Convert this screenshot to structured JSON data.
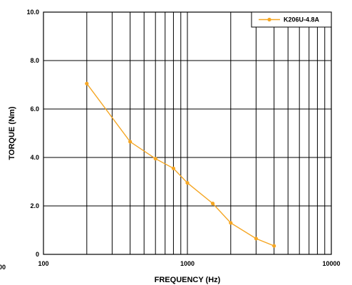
{
  "chart_data": {
    "type": "line",
    "x_scale": "log",
    "xlim": [
      100,
      10000
    ],
    "ylim": [
      0,
      10
    ],
    "xlabel": "FREQUENCY (Hz)",
    "ylabel": "TORQUE (Nm)",
    "x_ticks": [
      {
        "value": 100,
        "label": "100"
      },
      {
        "value": 1000,
        "label": "1000"
      },
      {
        "value": 10000,
        "label": "10000"
      }
    ],
    "y_ticks": [
      {
        "value": 0,
        "label": "0"
      },
      {
        "value": 2,
        "label": "2.0"
      },
      {
        "value": 4,
        "label": "4.0"
      },
      {
        "value": 6,
        "label": "6.0"
      },
      {
        "value": 8,
        "label": "8.0"
      },
      {
        "value": 10,
        "label": "10.0"
      }
    ],
    "extra_x_label": "00",
    "grid": true,
    "legend_position": "top-right",
    "series": [
      {
        "name": "K206U-4.8A",
        "color": "#f5a623",
        "points": [
          {
            "x": 200,
            "y": 7.05
          },
          {
            "x": 400,
            "y": 4.65
          },
          {
            "x": 600,
            "y": 3.95
          },
          {
            "x": 800,
            "y": 3.55
          },
          {
            "x": 1000,
            "y": 2.95
          },
          {
            "x": 1500,
            "y": 2.1
          },
          {
            "x": 2000,
            "y": 1.3
          },
          {
            "x": 3000,
            "y": 0.65
          },
          {
            "x": 4000,
            "y": 0.35
          }
        ]
      }
    ]
  }
}
